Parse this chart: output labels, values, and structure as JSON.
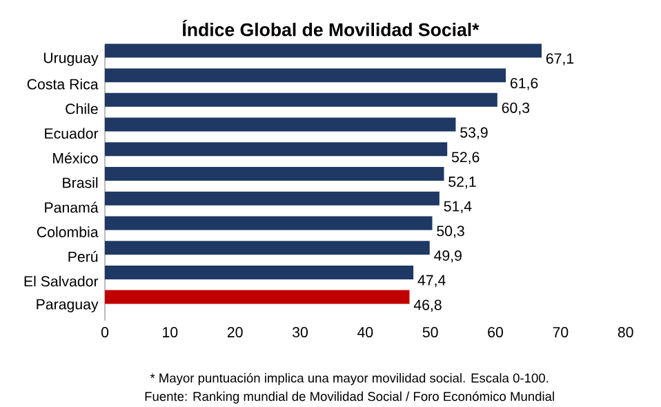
{
  "chart_data": {
    "type": "bar",
    "orientation": "horizontal",
    "title": "Índice Global de Movilidad Social*",
    "categories": [
      "Uruguay",
      "Costa Rica",
      "Chile",
      "Ecuador",
      "México",
      "Brasil",
      "Panamá",
      "Colombia",
      "Perú",
      "El Salvador",
      "Paraguay"
    ],
    "values": [
      67.1,
      61.6,
      60.3,
      53.9,
      52.6,
      52.1,
      51.4,
      50.3,
      49.9,
      47.4,
      46.8
    ],
    "value_labels": [
      "67,1",
      "61,6",
      "60,3",
      "53,9",
      "52,6",
      "52,1",
      "51,4",
      "50,3",
      "49,9",
      "47,4",
      "46,8"
    ],
    "colors": [
      "#1f3864",
      "#1f3864",
      "#1f3864",
      "#1f3864",
      "#1f3864",
      "#1f3864",
      "#1f3864",
      "#1f3864",
      "#1f3864",
      "#1f3864",
      "#c00000"
    ],
    "xlim": [
      0,
      80
    ],
    "xticks": [
      0,
      10,
      20,
      30,
      40,
      50,
      60,
      70,
      80
    ],
    "grid": false,
    "annotations": [
      "* Mayor puntuación implica una mayor movilidad social. Escala 0-100.",
      "Fuente: Ranking mundial de Movilidad Social / Foro Económico Mundial"
    ]
  }
}
